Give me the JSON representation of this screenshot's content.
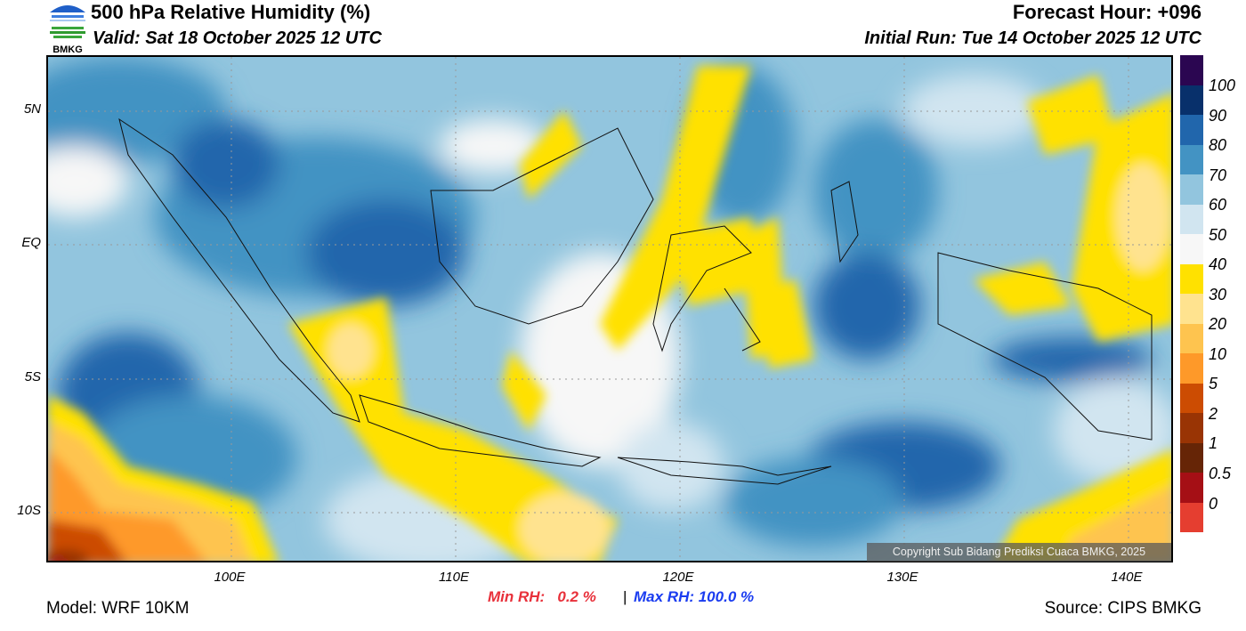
{
  "header": {
    "title": "500 hPa Relative Humidity (%)",
    "valid": "Valid: Sat 18 October 2025 12 UTC",
    "forecast_hour": "Forecast Hour: +096",
    "initial_run": "Initial Run: Tue 14 October 2025 12 UTC",
    "logo_text": "BMKG"
  },
  "axes": {
    "lat_ticks": [
      "5N",
      "EQ",
      "5S",
      "10S"
    ],
    "lon_ticks": [
      "100E",
      "110E",
      "120E",
      "130E",
      "140E"
    ]
  },
  "colorbar": {
    "labels": [
      "100",
      "90",
      "80",
      "70",
      "60",
      "50",
      "40",
      "30",
      "20",
      "10",
      "5",
      "2",
      "1",
      "0.5",
      "0"
    ],
    "colors": [
      "#2b0651",
      "#08306b",
      "#2166ac",
      "#4393c3",
      "#92c5de",
      "#d1e5f0",
      "#f7f7f7",
      "#ffe100",
      "#ffe38f",
      "#fec44f",
      "#fe9929",
      "#cc4c02",
      "#993404",
      "#662506",
      "#a50f15",
      "#e53e30"
    ]
  },
  "stats": {
    "min": "Min RH:   0.2 %",
    "separator": "|",
    "max": "Max RH: 100.0 %"
  },
  "footer": {
    "model": "Model: WRF 10KM",
    "source": "Source: CIPS BMKG",
    "copyright": "Copyright Sub Bidang Prediksi Cuaca BMKG, 2025"
  }
}
